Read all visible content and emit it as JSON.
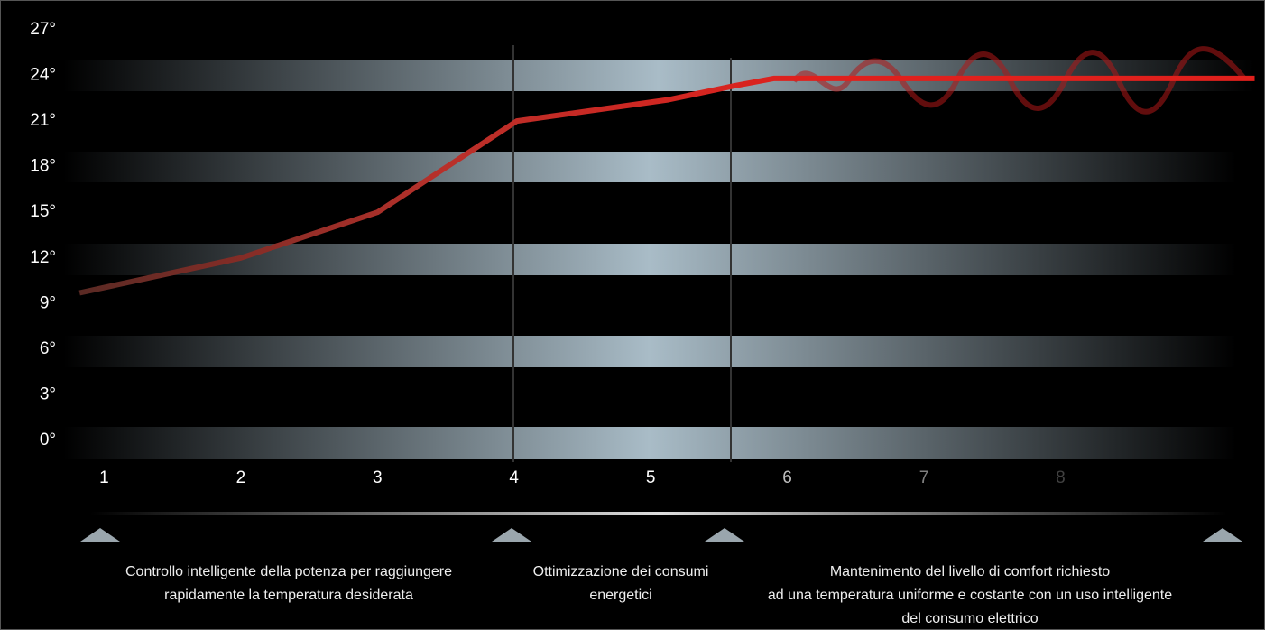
{
  "chart_data": {
    "type": "line",
    "x": [
      0.82,
      2,
      3,
      4.02,
      5.13,
      5.6,
      5.9,
      9.42
    ],
    "series": [
      {
        "color": "#e0201c",
        "values": [
          9.7,
          12,
          15,
          21,
          22.4,
          23.3,
          23.8,
          23.8
        ]
      }
    ],
    "xlim": [
      0.7,
      9.43
    ],
    "xticks": [
      1,
      2,
      3,
      4,
      5,
      6,
      7,
      8
    ],
    "ylim": [
      0,
      27
    ],
    "yticks": [
      {
        "value": 0,
        "label": "0°"
      },
      {
        "value": 3,
        "label": "3°"
      },
      {
        "value": 6,
        "label": "6°"
      },
      {
        "value": 9,
        "label": "9°"
      },
      {
        "value": 12,
        "label": "12°"
      },
      {
        "value": 15,
        "label": "15°"
      },
      {
        "value": 18,
        "label": "18°"
      },
      {
        "value": 21,
        "label": "21°"
      },
      {
        "value": 24,
        "label": "24°"
      },
      {
        "value": 27,
        "label": "27°"
      }
    ],
    "annotations": [
      [
        "Controllo intelligente della potenza per raggiungere",
        "rapidamente la temperatura desiderata"
      ],
      [
        "Ottimizzazione dei consumi",
        "energetici"
      ],
      [
        "Mantenimento del livello di comfort richiesto",
        "ad una temperatura uniforme e costante con un uso intelligente",
        "del consumo elettrico"
      ]
    ]
  }
}
